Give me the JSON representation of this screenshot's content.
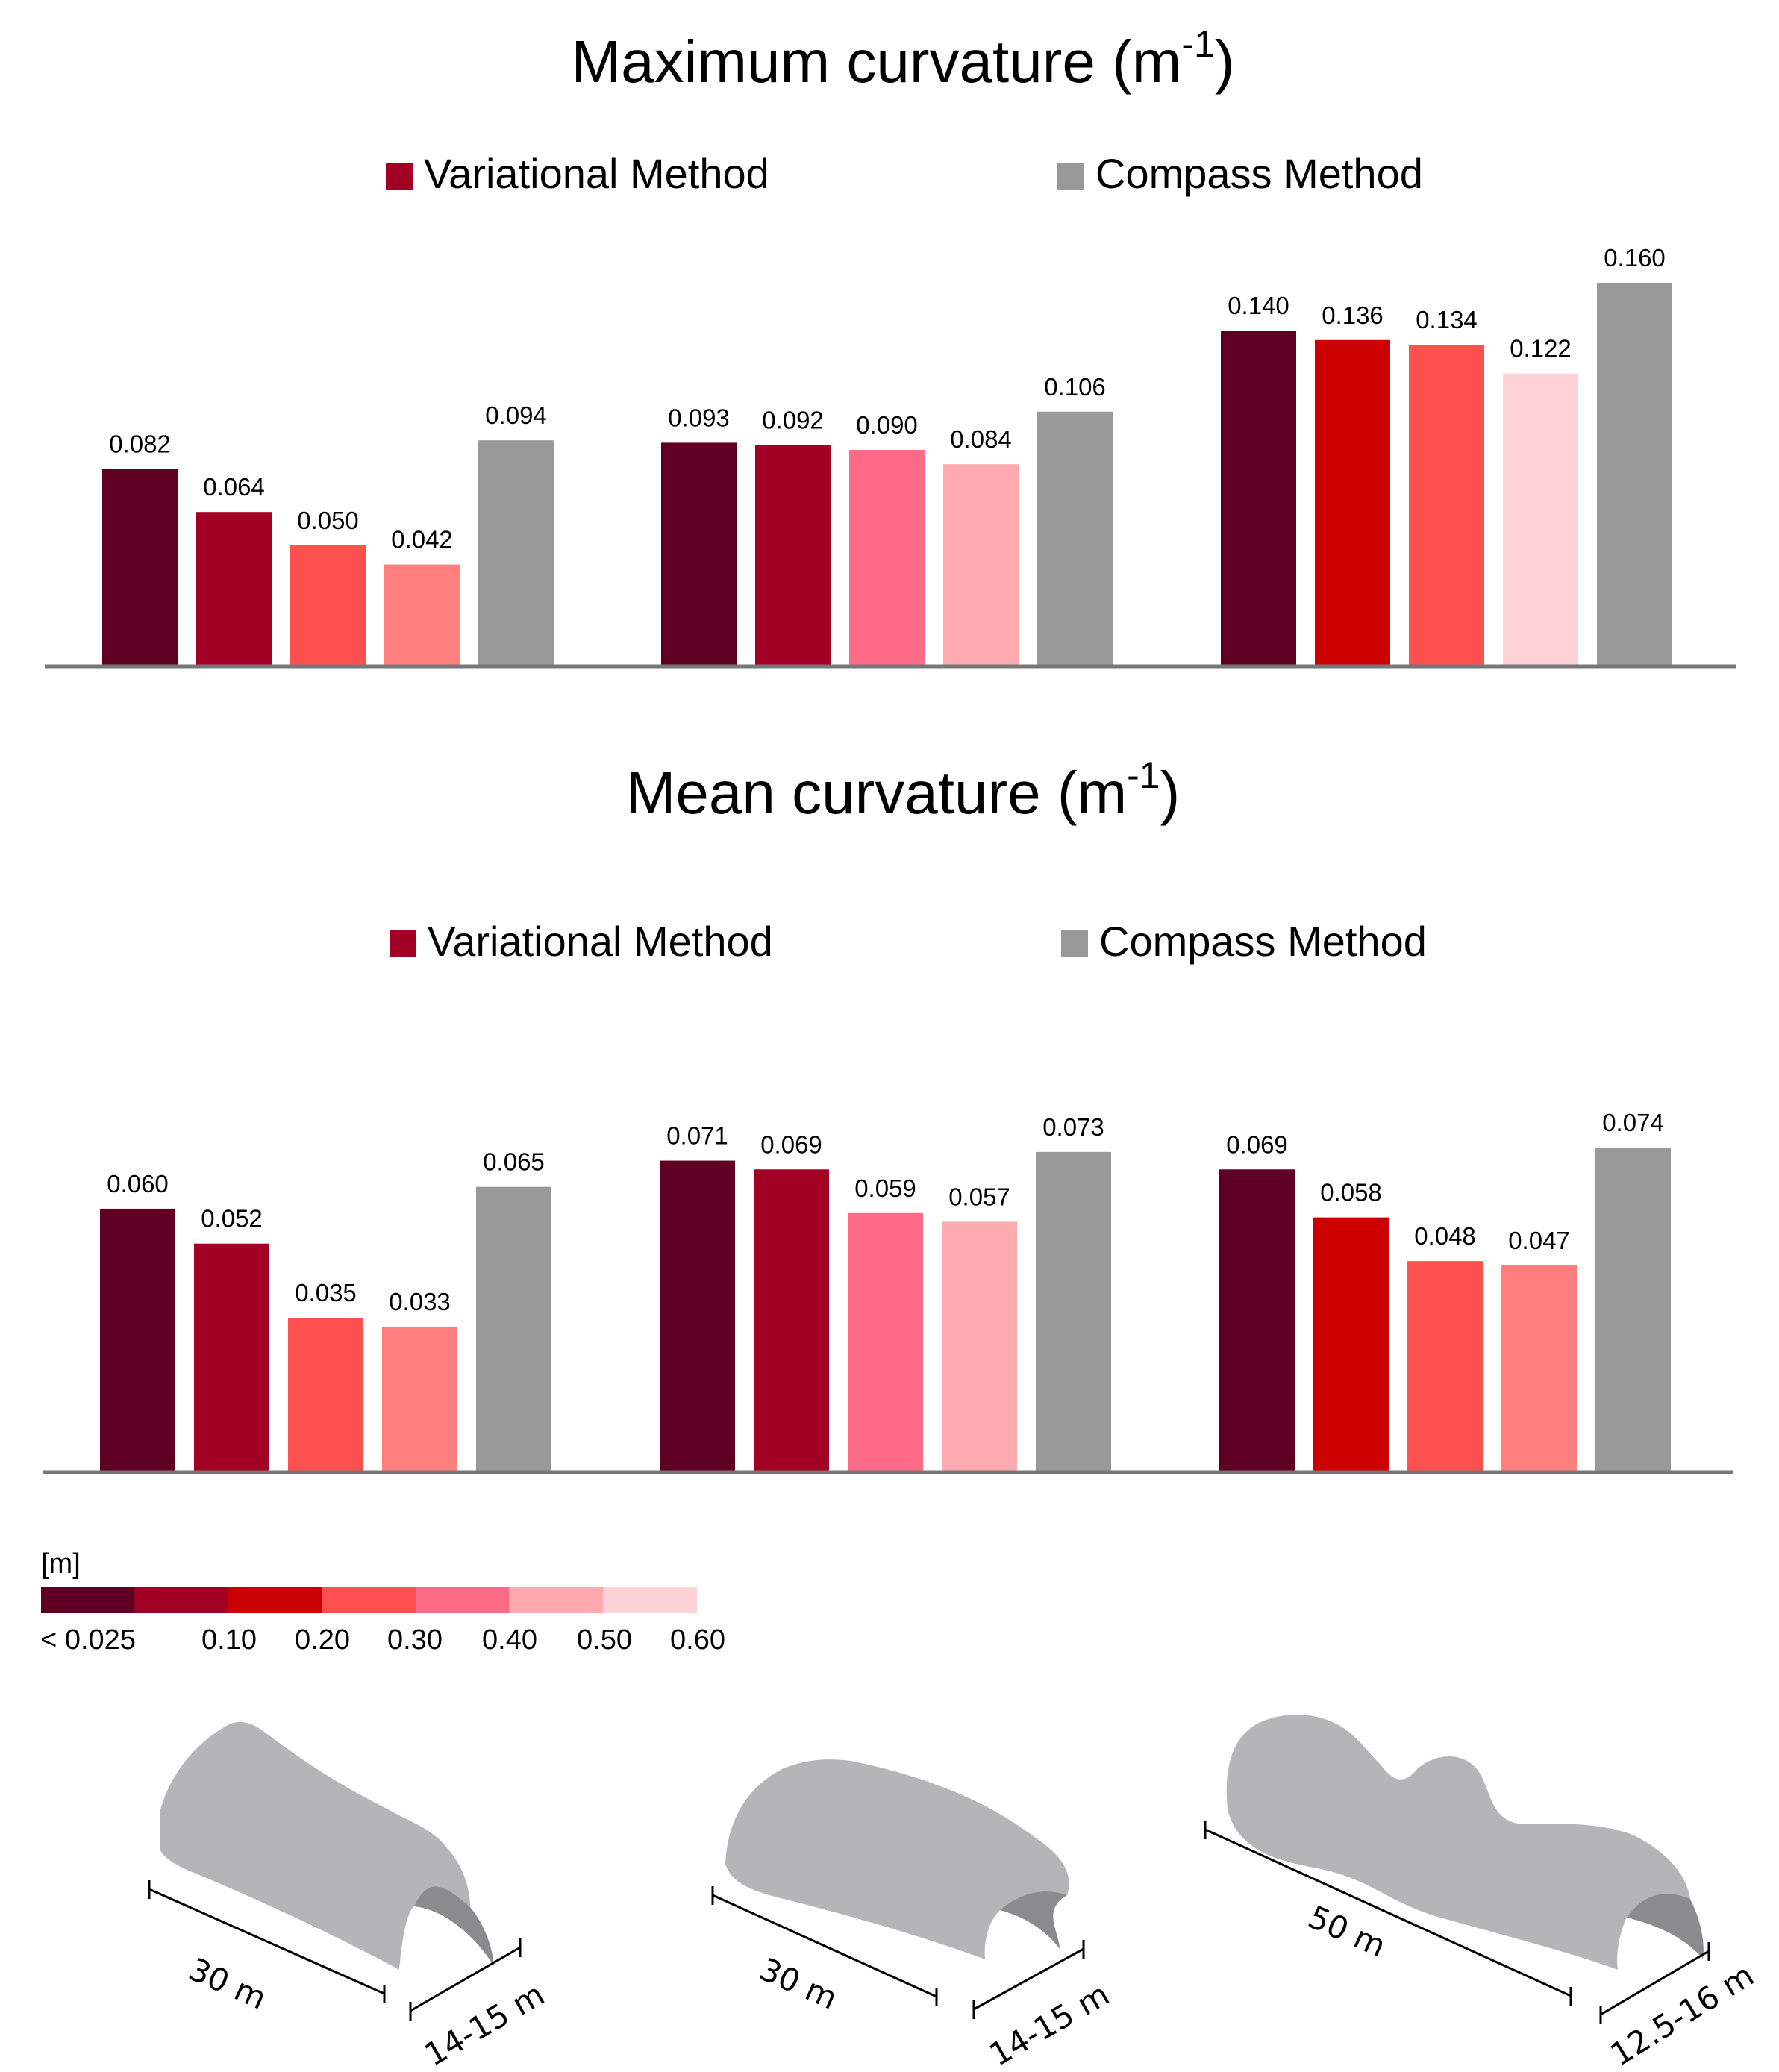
{
  "colors": {
    "c1": "#5f0022",
    "c2": "#a30026",
    "c3": "#cc0000",
    "c4": "#ff5050",
    "c5": "#ff7f7f",
    "c6": "#ff6b86",
    "c7": "#ffaab0",
    "c8": "#ffd2d5",
    "gray": "#999999",
    "shape": "#b4b5b7",
    "shape_dark": "#8a8b8d",
    "axis": "#777777"
  },
  "chart_data": [
    {
      "type": "bar",
      "title": "Maximum curvature (m",
      "title_sup": "-1",
      "title_close": ")",
      "legend": {
        "variational": "Variational Method",
        "compass": "Compass Method"
      },
      "ylim": [
        0,
        0.16
      ],
      "groups": [
        {
          "values": [
            0.082,
            0.064,
            0.05,
            0.042,
            0.094
          ],
          "labels": [
            "0.082",
            "0.064",
            "0.050",
            "0.042",
            "0.094"
          ],
          "colors": [
            "c1",
            "c2",
            "c4",
            "c5",
            "gray"
          ]
        },
        {
          "values": [
            0.093,
            0.092,
            0.09,
            0.084,
            0.106
          ],
          "labels": [
            "0.093",
            "0.092",
            "0.090",
            "0.084",
            "0.106"
          ],
          "colors": [
            "c1",
            "c2",
            "c6",
            "c7",
            "gray"
          ]
        },
        {
          "values": [
            0.14,
            0.136,
            0.134,
            0.122,
            0.16
          ],
          "labels": [
            "0.140",
            "0.136",
            "0.134",
            "0.122",
            "0.160"
          ],
          "colors": [
            "c1",
            "c3",
            "c4",
            "c8",
            "gray"
          ]
        }
      ]
    },
    {
      "type": "bar",
      "title": "Mean curvature (m",
      "title_sup": "-1",
      "title_close": ")",
      "legend": {
        "variational": "Variational Method",
        "compass": "Compass Method"
      },
      "ylim": [
        0,
        0.074
      ],
      "groups": [
        {
          "values": [
            0.06,
            0.052,
            0.035,
            0.033,
            0.065
          ],
          "labels": [
            "0.060",
            "0.052",
            "0.035",
            "0.033",
            "0.065"
          ],
          "colors": [
            "c1",
            "c2",
            "c4",
            "c5",
            "gray"
          ]
        },
        {
          "values": [
            0.071,
            0.069,
            0.059,
            0.057,
            0.073
          ],
          "labels": [
            "0.071",
            "0.069",
            "0.059",
            "0.057",
            "0.073"
          ],
          "colors": [
            "c1",
            "c2",
            "c6",
            "c7",
            "gray"
          ]
        },
        {
          "values": [
            0.069,
            0.058,
            0.048,
            0.047,
            0.074
          ],
          "labels": [
            "0.069",
            "0.058",
            "0.048",
            "0.047",
            "0.074"
          ],
          "colors": [
            "c1",
            "c3",
            "c4",
            "c5",
            "gray"
          ]
        }
      ]
    }
  ],
  "colorbar": {
    "unit": "[m]",
    "colors": [
      "c1",
      "c2",
      "c3",
      "c4",
      "c6",
      "c7",
      "c8"
    ],
    "labels": [
      "< 0.025",
      "0.10",
      "0.20",
      "0.30",
      "0.40",
      "0.50",
      "0.60"
    ]
  },
  "shapes": [
    {
      "length_label": "30 m",
      "width_label": "14-15 m"
    },
    {
      "length_label": "30 m",
      "width_label": "14-15 m"
    },
    {
      "length_label": "50 m",
      "width_label": "12.5-16 m"
    }
  ]
}
